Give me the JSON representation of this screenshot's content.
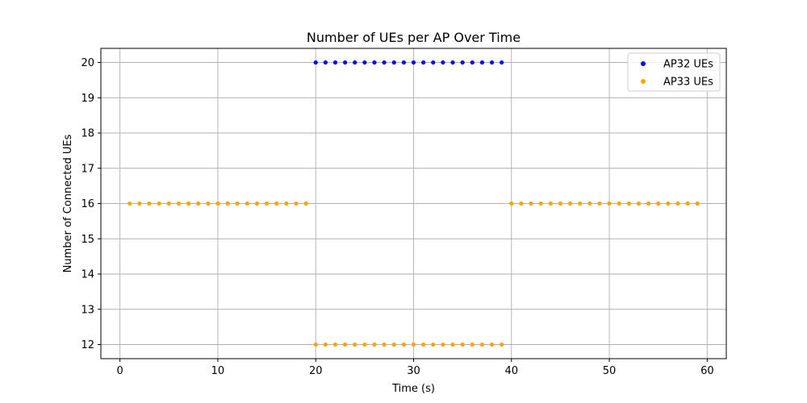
{
  "chart_data": {
    "type": "scatter",
    "title": "Number of UEs per AP Over Time",
    "xlabel": "Time (s)",
    "ylabel": "Number of Connected UEs",
    "xlim": [
      -1.95,
      61.95
    ],
    "ylim": [
      11.6,
      20.4
    ],
    "xticks": [
      0,
      10,
      20,
      30,
      40,
      50,
      60
    ],
    "yticks": [
      12,
      13,
      14,
      15,
      16,
      17,
      18,
      19,
      20
    ],
    "grid": true,
    "legend_position": "top-right",
    "series": [
      {
        "name": "AP32 UEs",
        "color": "#0000ff",
        "x": [
          20,
          21,
          22,
          23,
          24,
          25,
          26,
          27,
          28,
          29,
          30,
          31,
          32,
          33,
          34,
          35,
          36,
          37,
          38,
          39
        ],
        "y": [
          20,
          20,
          20,
          20,
          20,
          20,
          20,
          20,
          20,
          20,
          20,
          20,
          20,
          20,
          20,
          20,
          20,
          20,
          20,
          20
        ]
      },
      {
        "name": "AP33 UEs",
        "color": "#ffa500",
        "x": [
          1,
          2,
          3,
          4,
          5,
          6,
          7,
          8,
          9,
          10,
          11,
          12,
          13,
          14,
          15,
          16,
          17,
          18,
          19,
          20,
          21,
          22,
          23,
          24,
          25,
          26,
          27,
          28,
          29,
          30,
          31,
          32,
          33,
          34,
          35,
          36,
          37,
          38,
          39,
          40,
          41,
          42,
          43,
          44,
          45,
          46,
          47,
          48,
          49,
          50,
          51,
          52,
          53,
          54,
          55,
          56,
          57,
          58,
          59
        ],
        "y": [
          16,
          16,
          16,
          16,
          16,
          16,
          16,
          16,
          16,
          16,
          16,
          16,
          16,
          16,
          16,
          16,
          16,
          16,
          16,
          12,
          12,
          12,
          12,
          12,
          12,
          12,
          12,
          12,
          12,
          12,
          12,
          12,
          12,
          12,
          12,
          12,
          12,
          12,
          12,
          16,
          16,
          16,
          16,
          16,
          16,
          16,
          16,
          16,
          16,
          16,
          16,
          16,
          16,
          16,
          16,
          16,
          16,
          16,
          16
        ]
      }
    ]
  }
}
